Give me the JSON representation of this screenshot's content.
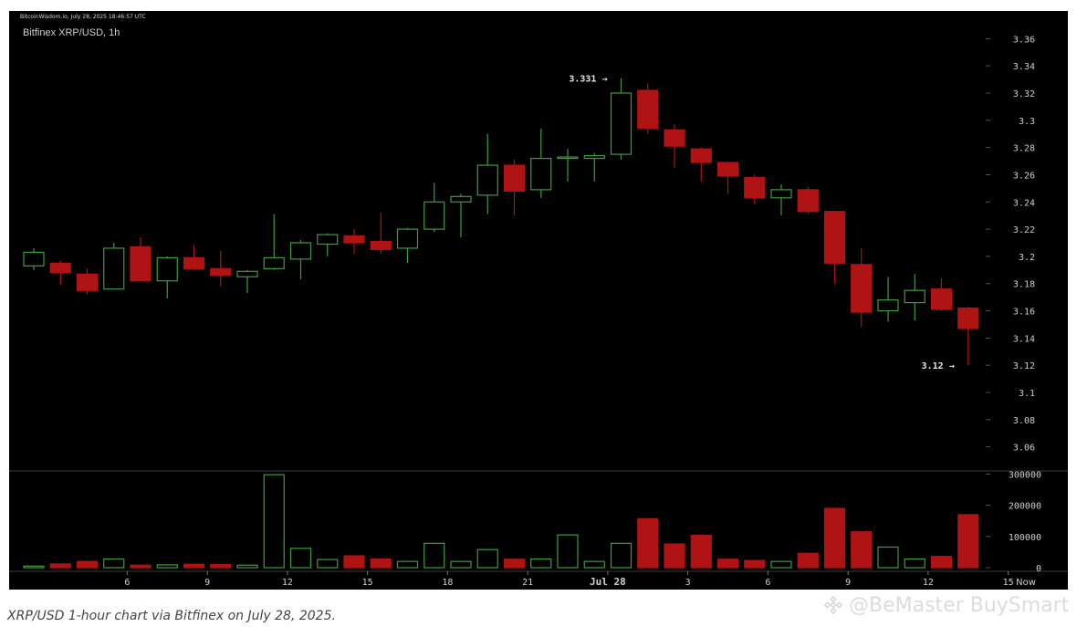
{
  "header": {
    "stamp": "BitcoinWisdom.io, July 28, 2025 18:46:57 UTC",
    "title": "Bitfinex XRP/USD, 1h"
  },
  "caption": "XRP/USD 1-hour chart via Bitfinex on July 28, 2025.",
  "watermark": "@BeMaster BuySmart",
  "colors": {
    "background": "#000000",
    "up": "#3d9b3d",
    "down": "#b01313",
    "axis_text": "#cfcfcf",
    "grid_line": "#333333"
  },
  "chart_data": {
    "type": "candlestick",
    "title": "Bitfinex XRP/USD, 1h",
    "price_ylim": [
      3.045,
      3.375
    ],
    "price_ticks": [
      "3.36",
      "3.34",
      "3.32",
      "3.3",
      "3.28",
      "3.26",
      "3.24",
      "3.22",
      "3.2",
      "3.18",
      "3.16",
      "3.14",
      "3.12",
      "3.1",
      "3.08",
      "3.06"
    ],
    "volume_ylim": [
      0,
      310000
    ],
    "volume_ticks": [
      "300000",
      "200000",
      "100000",
      "0"
    ],
    "x_ticks": [
      {
        "label": "6",
        "hour_index": 3.5
      },
      {
        "label": "9",
        "hour_index": 6.5
      },
      {
        "label": "12",
        "hour_index": 9.5
      },
      {
        "label": "15",
        "hour_index": 12.5
      },
      {
        "label": "18",
        "hour_index": 15.5
      },
      {
        "label": "21",
        "hour_index": 18.5
      },
      {
        "label": "Jul 28",
        "hour_index": 21.5
      },
      {
        "label": "3",
        "hour_index": 24.5
      },
      {
        "label": "6",
        "hour_index": 27.5
      },
      {
        "label": "9",
        "hour_index": 30.5
      },
      {
        "label": "12",
        "hour_index": 33.5
      },
      {
        "label": "15",
        "hour_index": 36.5
      }
    ],
    "now_label": "Now",
    "annotations": [
      {
        "text": "3.331 →",
        "candle": 22,
        "price": 3.331
      },
      {
        "text": "3.12 →",
        "candle": 35,
        "price": 3.12
      }
    ],
    "candles": [
      {
        "o": 3.193,
        "h": 3.206,
        "l": 3.19,
        "c": 3.203
      },
      {
        "o": 3.195,
        "h": 3.197,
        "l": 3.179,
        "c": 3.188
      },
      {
        "o": 3.187,
        "h": 3.191,
        "l": 3.172,
        "c": 3.175
      },
      {
        "o": 3.176,
        "h": 3.21,
        "l": 3.176,
        "c": 3.206
      },
      {
        "o": 3.207,
        "h": 3.214,
        "l": 3.182,
        "c": 3.182
      },
      {
        "o": 3.182,
        "h": 3.2,
        "l": 3.169,
        "c": 3.199
      },
      {
        "o": 3.199,
        "h": 3.208,
        "l": 3.19,
        "c": 3.191
      },
      {
        "o": 3.191,
        "h": 3.204,
        "l": 3.178,
        "c": 3.186
      },
      {
        "o": 3.185,
        "h": 3.19,
        "l": 3.173,
        "c": 3.189
      },
      {
        "o": 3.191,
        "h": 3.231,
        "l": 3.19,
        "c": 3.199
      },
      {
        "o": 3.198,
        "h": 3.212,
        "l": 3.183,
        "c": 3.21
      },
      {
        "o": 3.209,
        "h": 3.217,
        "l": 3.2,
        "c": 3.216
      },
      {
        "o": 3.215,
        "h": 3.22,
        "l": 3.202,
        "c": 3.21
      },
      {
        "o": 3.211,
        "h": 3.232,
        "l": 3.202,
        "c": 3.205
      },
      {
        "o": 3.206,
        "h": 3.221,
        "l": 3.195,
        "c": 3.22
      },
      {
        "o": 3.22,
        "h": 3.254,
        "l": 3.218,
        "c": 3.24
      },
      {
        "o": 3.24,
        "h": 3.246,
        "l": 3.214,
        "c": 3.244
      },
      {
        "o": 3.245,
        "h": 3.29,
        "l": 3.231,
        "c": 3.267
      },
      {
        "o": 3.267,
        "h": 3.271,
        "l": 3.23,
        "c": 3.248
      },
      {
        "o": 3.249,
        "h": 3.294,
        "l": 3.243,
        "c": 3.272
      },
      {
        "o": 3.272,
        "h": 3.279,
        "l": 3.255,
        "c": 3.273
      },
      {
        "o": 3.272,
        "h": 3.276,
        "l": 3.255,
        "c": 3.274
      },
      {
        "o": 3.275,
        "h": 3.331,
        "l": 3.271,
        "c": 3.32
      },
      {
        "o": 3.322,
        "h": 3.327,
        "l": 3.29,
        "c": 3.294
      },
      {
        "o": 3.293,
        "h": 3.297,
        "l": 3.265,
        "c": 3.281
      },
      {
        "o": 3.279,
        "h": 3.28,
        "l": 3.255,
        "c": 3.269
      },
      {
        "o": 3.269,
        "h": 3.269,
        "l": 3.246,
        "c": 3.259
      },
      {
        "o": 3.258,
        "h": 3.26,
        "l": 3.238,
        "c": 3.243
      },
      {
        "o": 3.243,
        "h": 3.253,
        "l": 3.23,
        "c": 3.249
      },
      {
        "o": 3.249,
        "h": 3.251,
        "l": 3.231,
        "c": 3.233
      },
      {
        "o": 3.233,
        "h": 3.233,
        "l": 3.18,
        "c": 3.195
      },
      {
        "o": 3.194,
        "h": 3.206,
        "l": 3.148,
        "c": 3.159
      },
      {
        "o": 3.16,
        "h": 3.185,
        "l": 3.152,
        "c": 3.168
      },
      {
        "o": 3.166,
        "h": 3.187,
        "l": 3.153,
        "c": 3.175
      },
      {
        "o": 3.176,
        "h": 3.184,
        "l": 3.16,
        "c": 3.161
      },
      {
        "o": 3.162,
        "h": 3.163,
        "l": 3.12,
        "c": 3.147
      }
    ],
    "volume": [
      5000,
      12000,
      20000,
      28000,
      8000,
      9000,
      11000,
      10000,
      8000,
      298000,
      62000,
      26000,
      38000,
      28000,
      20000,
      78000,
      20000,
      58000,
      27000,
      28000,
      105000,
      20000,
      78000,
      157000,
      76000,
      104000,
      27000,
      23000,
      20000,
      46000,
      190000,
      115000,
      66000,
      28000,
      36000,
      170000
    ]
  }
}
